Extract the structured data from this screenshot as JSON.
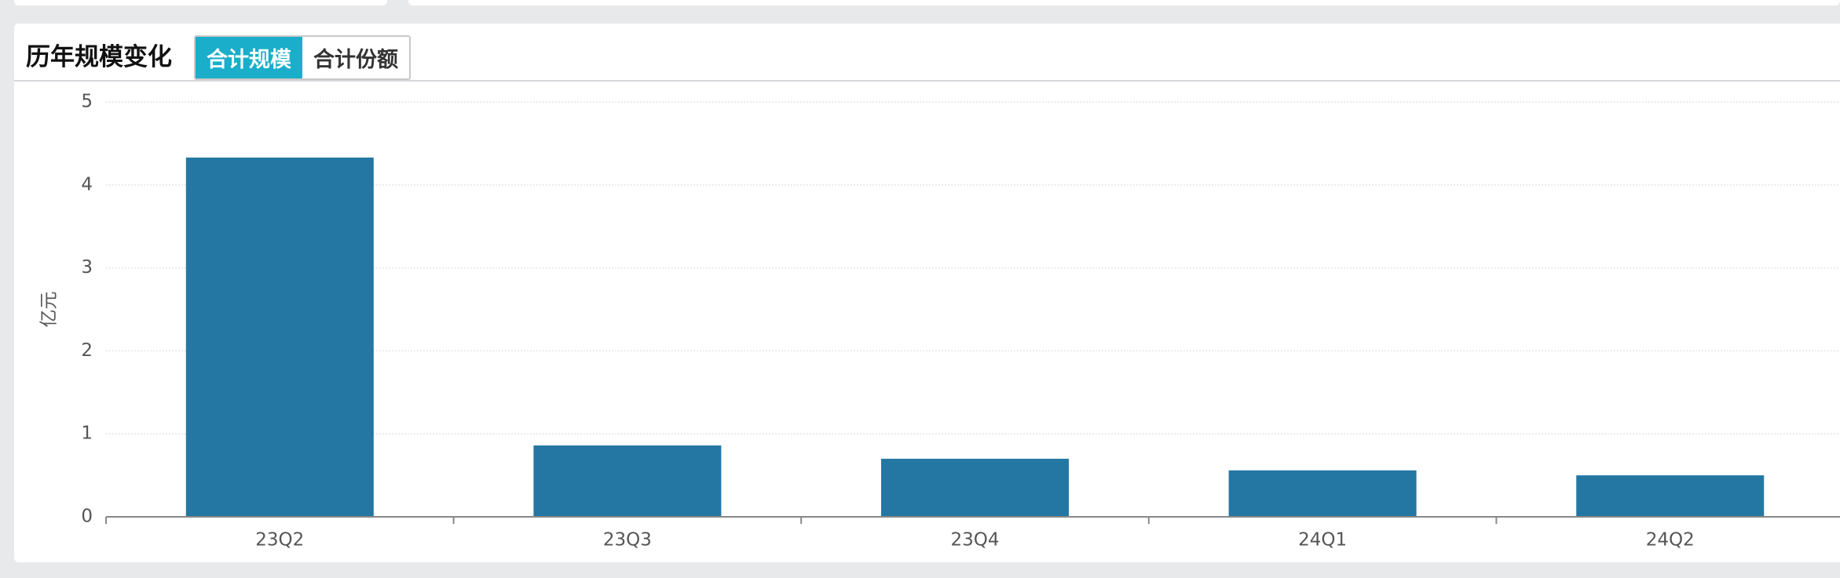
{
  "header": {
    "title": "历年规模变化",
    "tabs": [
      {
        "label": "合计规模",
        "active": true
      },
      {
        "label": "合计份额",
        "active": false
      }
    ]
  },
  "chart_data": {
    "type": "bar",
    "y_label": "亿元",
    "categories": [
      "23Q2",
      "23Q3",
      "23Q4",
      "24Q1",
      "24Q2"
    ],
    "values": [
      4.33,
      0.86,
      0.7,
      0.56,
      0.5
    ],
    "color": "#2477a3",
    "ylim": [
      0,
      5
    ],
    "yticks": [
      0,
      1,
      2,
      3,
      4,
      5
    ],
    "grid": true
  }
}
